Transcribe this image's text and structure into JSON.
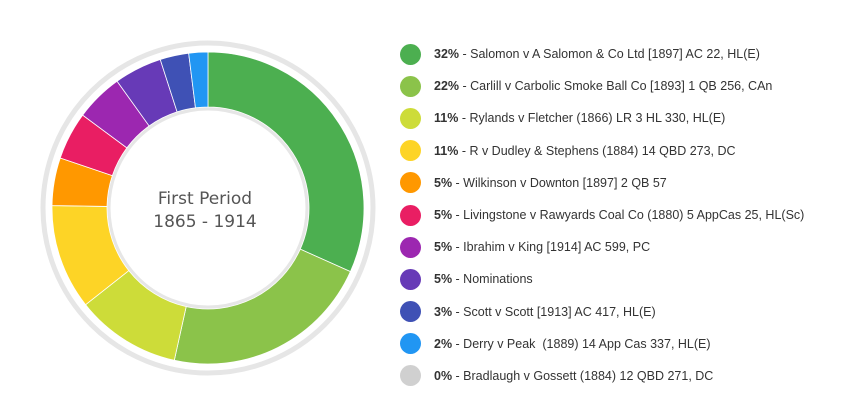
{
  "chart_data": {
    "type": "pie",
    "center_title": "First Period",
    "center_subtitle": "1865 - 1914",
    "slices": [
      {
        "percent": 32,
        "label": "32%",
        "name": "Salomon v A Salomon & Co Ltd [1897] AC 22, HL(E)",
        "color": "#4CAF50"
      },
      {
        "percent": 22,
        "label": "22%",
        "name": "Carlill v Carbolic Smoke Ball Co [1893] 1 QB 256, CAn",
        "color": "#8BC34A"
      },
      {
        "percent": 11,
        "label": "11%",
        "name": "Rylands v Fletcher (1866) LR 3 HL 330, HL(E)",
        "color": "#CDDC39"
      },
      {
        "percent": 11,
        "label": "11%",
        "name": "R v Dudley & Stephens (1884) 14 QBD 273, DC",
        "color": "#FDD426"
      },
      {
        "percent": 5,
        "label": "5%",
        "name": "Wilkinson v Downton [1897] 2 QB 57",
        "color": "#FF9800"
      },
      {
        "percent": 5,
        "label": "5%",
        "name": "Livingstone v Rawyards Coal Co (1880) 5 AppCas 25, HL(Sc)",
        "color": "#E91E63"
      },
      {
        "percent": 5,
        "label": "5%",
        "name": "Ibrahim v King [1914] AC 599, PC",
        "color": "#9C27B0"
      },
      {
        "percent": 5,
        "label": "5%",
        "name": "Nominations",
        "color": "#673AB7"
      },
      {
        "percent": 3,
        "label": "3%",
        "name": "Scott v Scott [1913] AC 417, HL(E)",
        "color": "#3F51B5"
      },
      {
        "percent": 2,
        "label": "2%",
        "name": "Derry v Peak  (1889) 14 App Cas 337, HL(E)",
        "color": "#2196F3"
      },
      {
        "percent": 0,
        "label": "0%",
        "name": "Bradlaugh v Gossett (1884) 12 QBD 271, DC",
        "color": "#D0D0D0"
      }
    ]
  }
}
